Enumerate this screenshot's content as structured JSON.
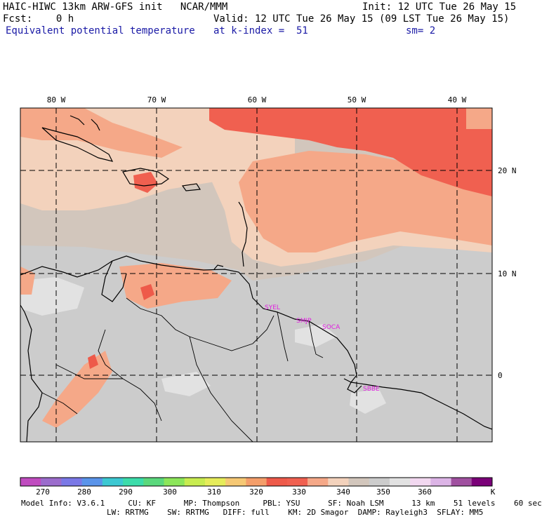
{
  "header": {
    "line1_left": "HAIC-HIWC 13km ARW-GFS init   NCAR/MMM",
    "line1_right": "Init: 12 UTC Tue 26 May 15",
    "line2_left": "Fcst:    0 h",
    "line2_right": "Valid: 12 UTC Tue 26 May 15 (09 LST Tue 26 May 15)",
    "line3_left": "Equivalent potential temperature",
    "line3_mid": "at k-index =  51",
    "line3_right": "sm= 2"
  },
  "map": {
    "lon_labels": [
      "80 W",
      "70 W",
      "60 W",
      "50 W",
      "40 W"
    ],
    "lat_labels": [
      "20 N",
      "10 N",
      "0"
    ],
    "stations": [
      "SYEL",
      "SMJP",
      "SOCA",
      "SBBE"
    ]
  },
  "colorbar": {
    "colors": [
      "#c04cc0",
      "#9b6ccc",
      "#7a78e6",
      "#5a94ea",
      "#3cc8d2",
      "#3cdcaa",
      "#5ad87c",
      "#8ce65a",
      "#c8ec50",
      "#e6ec5a",
      "#f6c874",
      "#f49e6a",
      "#ee5a4a",
      "#f06050",
      "#f5a888",
      "#f3d2bc",
      "#d2c6bc",
      "#cccccc",
      "#e2e2e2",
      "#f2d8f0",
      "#dcb4e6",
      "#a050a0",
      "#7a0078"
    ],
    "tick_labels": [
      "270",
      "280",
      "290",
      "300",
      "310",
      "320",
      "330",
      "340",
      "350",
      "360",
      "K"
    ]
  },
  "footer": {
    "line1": "Model Info: V3.6.1     CU: KF      MP: Thompson     PBL: YSU      SF: Noah LSM      13 km    51 levels    60 sec",
    "line2": "LW: RRTMG    SW: RRTMG   DIFF: full    KM: 2D Smagor  DAMP: Rayleigh3  SFLAY: MM5"
  }
}
